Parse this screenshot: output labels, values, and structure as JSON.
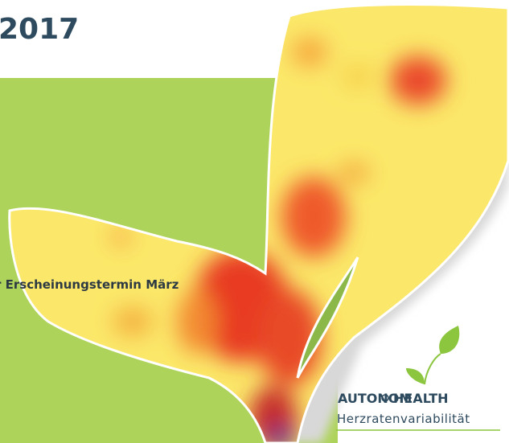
{
  "header": {
    "year": "2017"
  },
  "note": "r Erscheinungstermin März",
  "logo": {
    "name_left": "AUTONOM",
    "name_right": "HEALTH",
    "tagline": "Herzratenvariabilität"
  }
}
